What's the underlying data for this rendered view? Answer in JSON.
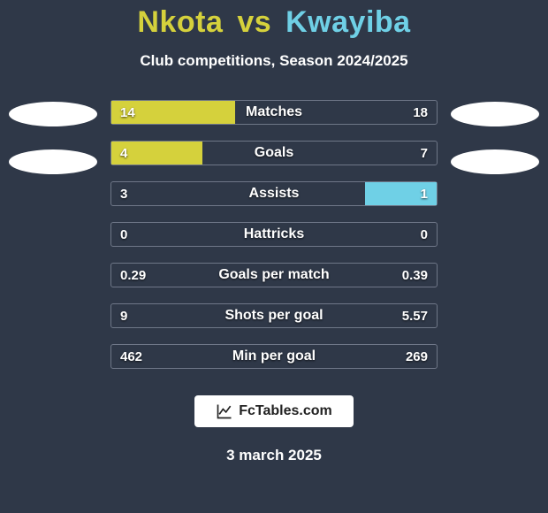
{
  "title": {
    "player1": "Nkota",
    "vs": "vs",
    "player2": "Kwayiba",
    "player1_color": "#d5d13c",
    "player2_color": "#6fd0e6"
  },
  "subtitle": "Club competitions, Season 2024/2025",
  "background_color": "#2f3848",
  "row_border_color": "#6f7788",
  "bar_left_color": "#d5d13c",
  "bar_right_color": "#6fd0e6",
  "text_shadow": "0 1px 2px rgba(0,0,0,0.7)",
  "oval_color": "#ffffff",
  "left_ovals": 2,
  "right_ovals": 2,
  "rows": [
    {
      "label": "Matches",
      "left": "14",
      "right": "18",
      "left_pct": 38,
      "right_pct": 0
    },
    {
      "label": "Goals",
      "left": "4",
      "right": "7",
      "left_pct": 28,
      "right_pct": 0
    },
    {
      "label": "Assists",
      "left": "3",
      "right": "1",
      "left_pct": 0,
      "right_pct": 22
    },
    {
      "label": "Hattricks",
      "left": "0",
      "right": "0",
      "left_pct": 0,
      "right_pct": 0
    },
    {
      "label": "Goals per match",
      "left": "0.29",
      "right": "0.39",
      "left_pct": 0,
      "right_pct": 0
    },
    {
      "label": "Shots per goal",
      "left": "9",
      "right": "5.57",
      "left_pct": 0,
      "right_pct": 0
    },
    {
      "label": "Min per goal",
      "left": "462",
      "right": "269",
      "left_pct": 0,
      "right_pct": 0
    }
  ],
  "brand": "FcTables.com",
  "date": "3 march 2025"
}
